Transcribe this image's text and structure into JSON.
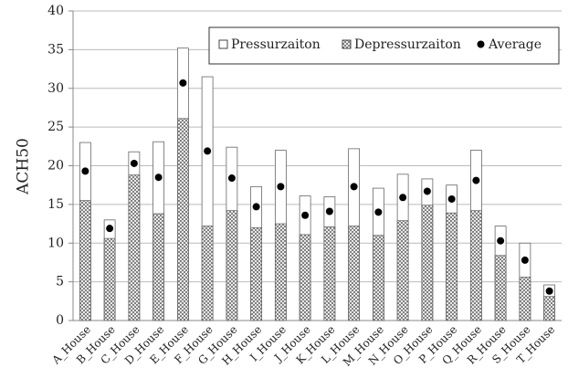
{
  "chart_data": {
    "type": "bar",
    "y_label": "ACH50",
    "categories": [
      "A_House",
      "B_House",
      "C_House",
      "D_House",
      "E_House",
      "F_House",
      "G_House",
      "H_House",
      "I_House",
      "J_House",
      "K_House",
      "L_House",
      "M_House",
      "N_House",
      "O_House",
      "P_House",
      "Q_House",
      "R_House",
      "S_House",
      "T_House"
    ],
    "series": [
      {
        "name": "Pressurzaiton",
        "type": "bar",
        "color": "#ffffff",
        "values": [
          23.0,
          13.0,
          21.8,
          23.1,
          35.2,
          31.5,
          22.4,
          17.3,
          22.0,
          16.1,
          16.0,
          22.2,
          17.1,
          18.9,
          18.3,
          17.5,
          22.0,
          12.2,
          10.0,
          4.6
        ]
      },
      {
        "name": "Depressurzaiton",
        "type": "bar",
        "color": "#ffffff",
        "pattern": "crosshatch",
        "values": [
          15.5,
          10.6,
          18.8,
          13.8,
          26.1,
          12.2,
          14.2,
          12.0,
          12.5,
          11.1,
          12.1,
          12.2,
          11.0,
          12.9,
          14.9,
          13.9,
          14.2,
          8.4,
          5.6,
          3.1
        ]
      },
      {
        "name": "Average",
        "type": "scatter",
        "color": "#000000",
        "values": [
          19.3,
          11.9,
          20.3,
          18.5,
          30.7,
          21.9,
          18.4,
          14.7,
          17.3,
          13.6,
          14.1,
          17.3,
          14.0,
          15.9,
          16.7,
          15.7,
          18.1,
          10.3,
          7.8,
          3.8
        ]
      }
    ],
    "ylim": [
      0,
      40
    ],
    "yticks": [
      0,
      5,
      10,
      15,
      20,
      25,
      30,
      35,
      40
    ],
    "grid": true
  }
}
